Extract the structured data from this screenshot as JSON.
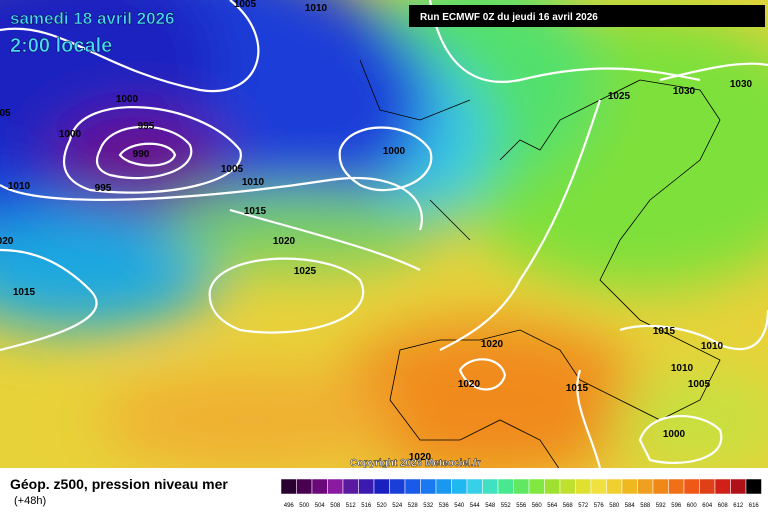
{
  "header": {
    "valid": "samedi 18 avril 2026",
    "local_time": "2:00 locale",
    "run": "Run ECMWF 0Z du jeudi 16 avril 2026"
  },
  "isobar_labels": [
    "05",
    "1005",
    "1010",
    "1000",
    "995",
    "990",
    "1000",
    "995",
    "1005",
    "1010",
    "1010",
    "1015",
    "1020",
    "1025",
    "1000",
    "020",
    "1015",
    "1025",
    "1030",
    "1030",
    "1020",
    "1020",
    "1015",
    "1015",
    "1010",
    "1010",
    "1005",
    "1000",
    "1020"
  ],
  "copyright": "Copyright 2026 Meteociel.fr",
  "footer": {
    "title": "Géop. z500, pression niveau mer",
    "lead": "(+48h)"
  },
  "scale": {
    "labels": [
      496,
      500,
      504,
      508,
      512,
      516,
      520,
      524,
      528,
      532,
      536,
      540,
      544,
      548,
      552,
      556,
      560,
      564,
      568,
      572,
      576,
      580,
      584,
      588,
      592,
      596,
      600,
      604,
      608,
      612,
      616
    ]
  }
}
